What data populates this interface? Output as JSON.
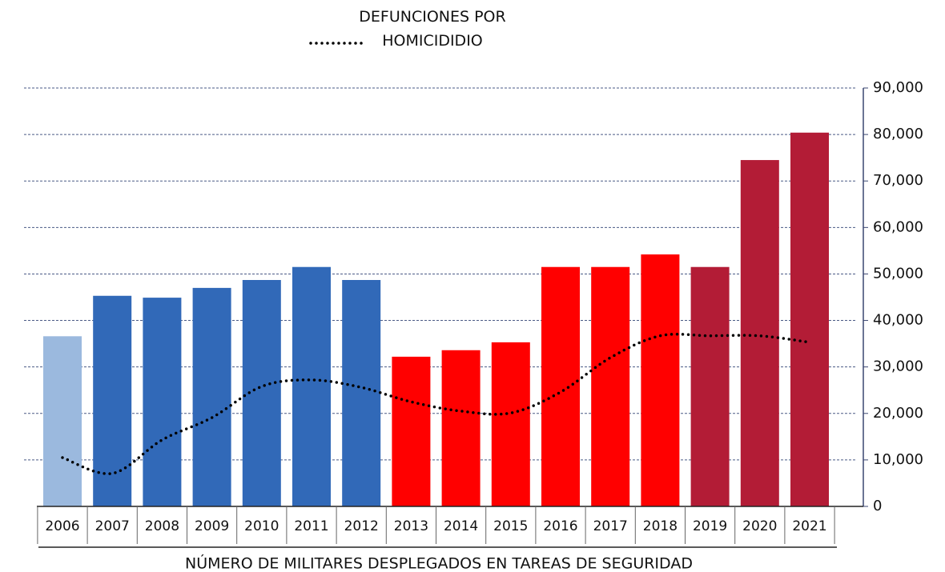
{
  "chart_data": {
    "type": "bar",
    "x_label": "NÚMERO DE MILITARES DESPLEGADOS EN TAREAS DE SEGURIDAD",
    "categories": [
      "2006",
      "2007",
      "2008",
      "2009",
      "2010",
      "2011",
      "2012",
      "2013",
      "2014",
      "2015",
      "2016",
      "2017",
      "2018",
      "2019",
      "2020",
      "2021"
    ],
    "series": [
      {
        "type": "bar",
        "colors": [
          "#9bb9de",
          "#3169b8",
          "#3169b8",
          "#3169b8",
          "#3169b8",
          "#3169b8",
          "#3169b8",
          "#ff0000",
          "#ff0000",
          "#ff0000",
          "#ff0000",
          "#ff0000",
          "#ff0000",
          "#b31c36",
          "#b31c36",
          "#b31c36"
        ],
        "values": [
          36600,
          45300,
          44900,
          47000,
          48700,
          51500,
          48700,
          32200,
          33600,
          35300,
          51500,
          51500,
          54200,
          51500,
          74500,
          80400
        ]
      },
      {
        "type": "line",
        "name": "DEFUNCIONES POR HOMICIDIDIO",
        "color": "#000000",
        "values": [
          10500,
          7100,
          14300,
          19100,
          25800,
          27200,
          25600,
          22500,
          20500,
          20100,
          24600,
          32000,
          36700,
          36700,
          36700,
          35300
        ]
      }
    ],
    "ylim": [
      0,
      90000
    ],
    "yticks": [
      0,
      {
        "value": 10000,
        "label": "10,000"
      },
      {
        "value": 20000,
        "label": "20,000"
      },
      {
        "value": 30000,
        "label": "30,000"
      },
      {
        "value": 40000,
        "label": "40,000"
      },
      {
        "value": 50000,
        "label": "50,000"
      },
      {
        "value": 60000,
        "label": "60,000"
      },
      {
        "value": 70000,
        "label": "70,000"
      },
      {
        "value": 80000,
        "label": "80,000"
      },
      {
        "value": 90000,
        "label": "90,000"
      }
    ],
    "grid": true
  }
}
